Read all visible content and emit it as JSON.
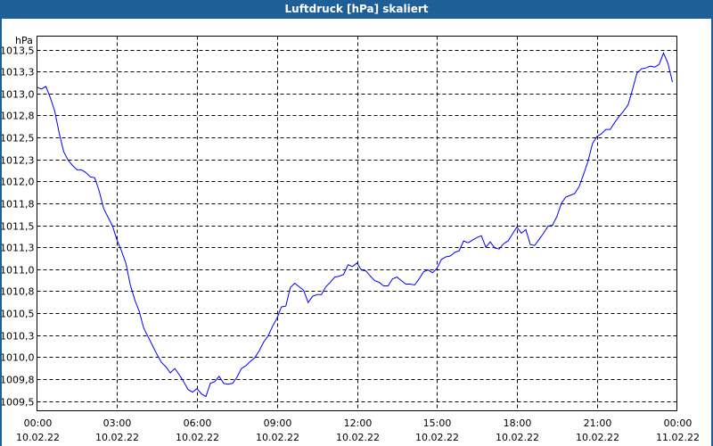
{
  "window": {
    "title": "Luftdruck [hPa] skaliert"
  },
  "chart_data": {
    "type": "line",
    "title": "Luftdruck [hPa] skaliert",
    "ylabel": "hPa",
    "xlabel": "",
    "ylim": [
      1009.5,
      1013.5
    ],
    "y_ticks": [
      1009.5,
      1009.75,
      1010.0,
      1010.25,
      1010.5,
      1010.75,
      1011.0,
      1011.25,
      1011.5,
      1011.75,
      1012.0,
      1012.25,
      1012.5,
      1012.75,
      1013.0,
      1013.25,
      1013.5
    ],
    "y_tick_labels": [
      "1009,5",
      "1009,8",
      "1010,0",
      "1010,3",
      "1010,5",
      "1010,8",
      "1011,0",
      "1011,3",
      "1011,5",
      "1011,8",
      "1012,0",
      "1012,3",
      "1012,5",
      "1012,8",
      "1013,0",
      "1013,3",
      "1013,5"
    ],
    "xlim_hours": [
      0,
      24
    ],
    "x_ticks": [
      {
        "hour": 0,
        "time": "00:00",
        "date": "10.02.22"
      },
      {
        "hour": 3,
        "time": "03:00",
        "date": "10.02.22"
      },
      {
        "hour": 6,
        "time": "06:00",
        "date": "10.02.22"
      },
      {
        "hour": 9,
        "time": "09:00",
        "date": "10.02.22"
      },
      {
        "hour": 12,
        "time": "12:00",
        "date": "10.02.22"
      },
      {
        "hour": 15,
        "time": "15:00",
        "date": "10.02.22"
      },
      {
        "hour": 18,
        "time": "18:00",
        "date": "10.02.22"
      },
      {
        "hour": 21,
        "time": "21:00",
        "date": "10.02.22"
      },
      {
        "hour": 24,
        "time": "00:00",
        "date": "11.02.22"
      }
    ],
    "grid": true,
    "line_color": "#0000ff",
    "series": [
      {
        "name": "Luftdruck",
        "start_hour": 0,
        "interval_minutes": 10,
        "values": [
          1013.07,
          1013.05,
          1013.08,
          1012.95,
          1012.8,
          1012.55,
          1012.34,
          1012.24,
          1012.18,
          1012.13,
          1012.13,
          1012.1,
          1012.05,
          1012.04,
          1011.89,
          1011.69,
          1011.59,
          1011.49,
          1011.33,
          1011.21,
          1011.07,
          1010.82,
          1010.65,
          1010.52,
          1010.33,
          1010.23,
          1010.13,
          1010.03,
          1009.94,
          1009.89,
          1009.82,
          1009.87,
          1009.8,
          1009.72,
          1009.63,
          1009.6,
          1009.64,
          1009.58,
          1009.55,
          1009.7,
          1009.72,
          1009.78,
          1009.7,
          1009.69,
          1009.7,
          1009.77,
          1009.87,
          1009.9,
          1009.95,
          1009.99,
          1010.07,
          1010.17,
          1010.24,
          1010.35,
          1010.44,
          1010.57,
          1010.58,
          1010.79,
          1010.84,
          1010.8,
          1010.76,
          1010.62,
          1010.69,
          1010.71,
          1010.71,
          1010.8,
          1010.85,
          1010.91,
          1010.92,
          1010.94,
          1011.05,
          1011.03,
          1011.07,
          1010.99,
          1010.98,
          1010.92,
          1010.87,
          1010.85,
          1010.81,
          1010.81,
          1010.89,
          1010.91,
          1010.87,
          1010.83,
          1010.83,
          1010.82,
          1010.89,
          1010.97,
          1010.99,
          1010.96,
          1011.01,
          1011.11,
          1011.14,
          1011.15,
          1011.19,
          1011.21,
          1011.32,
          1011.3,
          1011.33,
          1011.36,
          1011.38,
          1011.25,
          1011.31,
          1011.24,
          1011.23,
          1011.29,
          1011.32,
          1011.4,
          1011.48,
          1011.41,
          1011.45,
          1011.28,
          1011.27,
          1011.34,
          1011.41,
          1011.49,
          1011.5,
          1011.6,
          1011.75,
          1011.82,
          1011.84,
          1011.86,
          1011.94,
          1012.08,
          1012.23,
          1012.43,
          1012.51,
          1012.54,
          1012.59,
          1012.59,
          1012.67,
          1012.74,
          1012.8,
          1012.87,
          1013.04,
          1013.23,
          1013.28,
          1013.29,
          1013.31,
          1013.3,
          1013.33,
          1013.46,
          1013.34,
          1013.13
        ]
      }
    ]
  }
}
